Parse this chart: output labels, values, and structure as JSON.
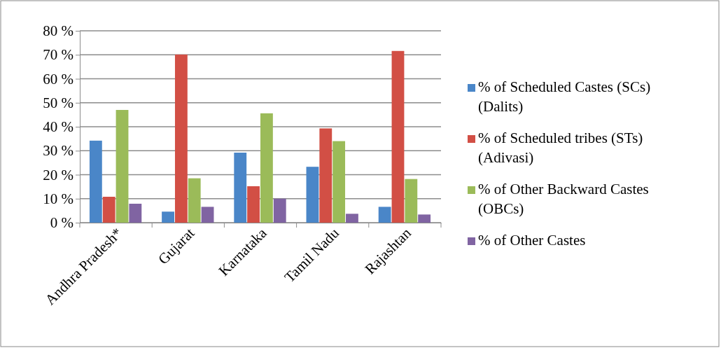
{
  "chart_data": {
    "type": "bar",
    "categories": [
      "Andhra Pradesh*",
      "Gujarat",
      "Karnataka",
      "Tamil Nadu",
      "Rajashtan"
    ],
    "series": [
      {
        "name": "% of Scheduled Castes (SCs) (Dalits)",
        "color": "#4a86c8",
        "values": [
          34.2,
          4.6,
          29.2,
          23.3,
          6.6
        ]
      },
      {
        "name": "% of Scheduled tribes (STs) (Adivasi)",
        "color": "#d24f45",
        "values": [
          10.8,
          70.1,
          15.2,
          39.3,
          71.6
        ]
      },
      {
        "name": "% of Other Backward Castes (OBCs)",
        "color": "#9bbb59",
        "values": [
          47.0,
          18.5,
          45.6,
          34.0,
          18.2
        ]
      },
      {
        "name": "% of Other Castes",
        "color": "#8064a2",
        "values": [
          7.9,
          6.6,
          10.0,
          3.7,
          3.4
        ]
      }
    ],
    "ylim": [
      0,
      80
    ],
    "yticks": [
      {
        "value": 0,
        "label": "0 %"
      },
      {
        "value": 10,
        "label": "10 %"
      },
      {
        "value": 20,
        "label": "20 %"
      },
      {
        "value": 30,
        "label": "30 %"
      },
      {
        "value": 40,
        "label": "40 %"
      },
      {
        "value": 50,
        "label": "50 %"
      },
      {
        "value": 60,
        "label": "60 %"
      },
      {
        "value": 70,
        "label": "70 %"
      },
      {
        "value": 80,
        "label": "80 %"
      }
    ],
    "grid": "y",
    "legend": "right"
  }
}
